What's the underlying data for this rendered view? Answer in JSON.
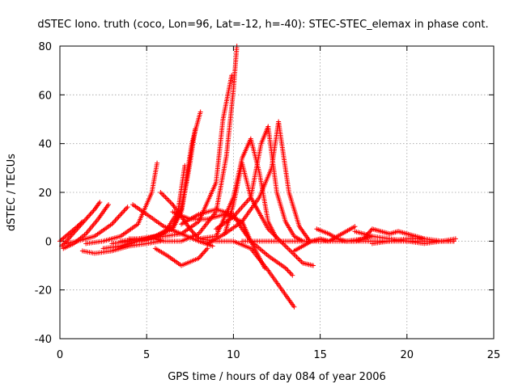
{
  "chart_data": {
    "type": "scatter",
    "title": "dSTEC Iono. truth (coco, Lon=96, Lat=-12, h=-40): STEC-STEC_elemax in phase cont.",
    "xlabel": "GPS time / hours of day 084 of year 2006",
    "ylabel": "dSTEC  / TECUs",
    "xlim": [
      0,
      25
    ],
    "ylim": [
      -40,
      80
    ],
    "xticks": [
      0,
      5,
      10,
      15,
      20,
      25
    ],
    "yticks": [
      -40,
      -20,
      0,
      20,
      40,
      60,
      80
    ],
    "grid": true,
    "marker": "+",
    "color": "#ff0000",
    "series": [
      {
        "x": [
          0.1,
          0.5,
          1.0,
          1.5,
          2.0,
          2.3
        ],
        "y": [
          -2,
          1,
          5,
          9,
          13,
          16
        ]
      },
      {
        "x": [
          0.2,
          0.8,
          1.5,
          2.2,
          2.8
        ],
        "y": [
          -3,
          -1,
          3,
          9,
          15
        ]
      },
      {
        "x": [
          0.3,
          1.0,
          2.0,
          3.0,
          3.9
        ],
        "y": [
          -1,
          0,
          2,
          7,
          14
        ]
      },
      {
        "x": [
          0.0,
          0.5,
          1.0,
          1.3
        ],
        "y": [
          0,
          3,
          6,
          8
        ]
      },
      {
        "x": [
          1.3,
          2.0,
          3.0,
          4.0,
          5.0,
          5.8
        ],
        "y": [
          -4,
          -5,
          -4,
          -2,
          -1,
          0
        ]
      },
      {
        "x": [
          1.5,
          2.5,
          3.5,
          4.5,
          5.3,
          5.6
        ],
        "y": [
          -1,
          0,
          2,
          7,
          20,
          32
        ]
      },
      {
        "x": [
          2.5,
          3.5,
          4.5,
          5.5,
          6.5,
          7.0,
          7.3,
          7.6,
          8.1
        ],
        "y": [
          -3,
          -2,
          0,
          2,
          6,
          13,
          26,
          40,
          53
        ]
      },
      {
        "x": [
          3.0,
          4.0,
          5.0,
          6.0,
          6.8,
          7.2
        ],
        "y": [
          -1,
          0,
          1,
          3,
          12,
          31
        ]
      },
      {
        "x": [
          3.5,
          4.5,
          5.5,
          6.5,
          7.0,
          7.5,
          7.8
        ],
        "y": [
          0,
          1,
          2,
          5,
          12,
          32,
          46
        ]
      },
      {
        "x": [
          4.0,
          5.0,
          6.0,
          7.0,
          8.0,
          9.0,
          9.4,
          9.9
        ],
        "y": [
          1,
          1,
          2,
          3,
          8,
          24,
          50,
          68
        ]
      },
      {
        "x": [
          4.5,
          5.5,
          6.0,
          7.0,
          8.0,
          9.0,
          9.6,
          10.0,
          10.2
        ],
        "y": [
          0,
          1,
          0,
          0,
          3,
          12,
          35,
          62,
          80
        ]
      },
      {
        "x": [
          4.2,
          5.0,
          6.0,
          7.0,
          8.0,
          8.8
        ],
        "y": [
          15,
          11,
          6,
          3,
          0,
          -2
        ]
      },
      {
        "x": [
          5.5,
          6.2,
          7.0,
          8.0,
          8.5
        ],
        "y": [
          -3,
          -6,
          -10,
          -7,
          -3
        ]
      },
      {
        "x": [
          5.8,
          6.5,
          7.0,
          7.5,
          8.0,
          9.0,
          10.0,
          11.0,
          12.0,
          13.0,
          13.5
        ],
        "y": [
          20,
          15,
          10,
          5,
          1,
          0,
          0,
          -3,
          -12,
          -22,
          -27
        ]
      },
      {
        "x": [
          6.5,
          7.5,
          8.5,
          9.5,
          10.5,
          11.0,
          11.8
        ],
        "y": [
          12,
          9,
          9,
          11,
          8,
          0,
          -11
        ]
      },
      {
        "x": [
          7.0,
          8.0,
          9.0,
          10.0,
          10.5,
          11.0,
          12.0,
          13.0,
          13.4
        ],
        "y": [
          7,
          11,
          13,
          11,
          5,
          0,
          -6,
          -11,
          -14
        ]
      },
      {
        "x": [
          8.0,
          9.0,
          10.0,
          10.5,
          11.0,
          11.5,
          12.0,
          12.5
        ],
        "y": [
          1,
          2,
          18,
          34,
          42,
          28,
          8,
          1
        ]
      },
      {
        "x": [
          8.5,
          9.5,
          10.0,
          10.5,
          11.0,
          12.0,
          13.0,
          14.0,
          14.6
        ],
        "y": [
          -1,
          3,
          15,
          32,
          18,
          5,
          -2,
          -9,
          -10
        ]
      },
      {
        "x": [
          9.0,
          10.0,
          11.0,
          11.6,
          12.0,
          12.5,
          13.0,
          13.5,
          14.0
        ],
        "y": [
          5,
          10,
          18,
          40,
          47,
          20,
          8,
          2,
          0
        ]
      },
      {
        "x": [
          9.5,
          10.5,
          11.5,
          12.2,
          12.6,
          13.2,
          13.8,
          14.4
        ],
        "y": [
          3,
          8,
          18,
          30,
          49,
          20,
          6,
          0
        ]
      },
      {
        "x": [
          10.5,
          11.5,
          12.5,
          13.5,
          14.5,
          15.5,
          16.5,
          17.5,
          18.5,
          19.5,
          20.5,
          21.5,
          22.5,
          22.7
        ],
        "y": [
          0,
          0,
          0,
          0,
          0,
          0,
          0,
          0,
          0,
          0,
          0,
          0,
          0,
          0
        ]
      },
      {
        "x": [
          13.5,
          14.0,
          14.5,
          15.0,
          15.5,
          16.0,
          16.5,
          17.0
        ],
        "y": [
          -4,
          -2,
          0,
          1,
          0,
          2,
          4,
          6
        ]
      },
      {
        "x": [
          14.8,
          15.5,
          16.0,
          16.5,
          17.0,
          17.5,
          18.0
        ],
        "y": [
          5,
          3,
          1,
          0,
          0,
          1,
          2
        ]
      },
      {
        "x": [
          16.5,
          17.5,
          18.0,
          18.5,
          19.0,
          19.5,
          20.0,
          20.5,
          21.0
        ],
        "y": [
          0,
          1,
          5,
          4,
          3,
          4,
          3,
          2,
          1
        ]
      },
      {
        "x": [
          18.0,
          19.0,
          20.0,
          21.0,
          22.0,
          22.8
        ],
        "y": [
          -1,
          0,
          1,
          1,
          0,
          1
        ]
      },
      {
        "x": [
          17.0,
          18.0,
          19.0,
          20.0,
          21.0,
          22.0,
          22.7
        ],
        "y": [
          4,
          2,
          1,
          0,
          -1,
          0,
          0
        ]
      }
    ]
  }
}
